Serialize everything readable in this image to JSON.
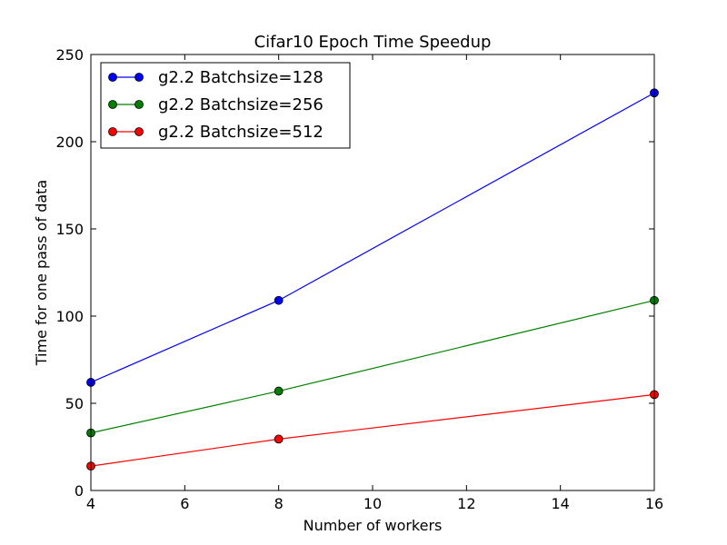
{
  "chart_data": {
    "type": "line",
    "title": "Cifar10 Epoch Time Speedup",
    "xlabel": "Number of workers",
    "ylabel": "Time for one pass of data",
    "xlim": [
      4,
      16
    ],
    "ylim": [
      0,
      250
    ],
    "xticks": [
      "4",
      "6",
      "8",
      "10",
      "12",
      "14",
      "16"
    ],
    "yticks": [
      "0",
      "50",
      "100",
      "150",
      "200",
      "250"
    ],
    "grid": false,
    "legend_position": "top-left",
    "x": [
      4,
      8,
      16
    ],
    "series": [
      {
        "name": "g2.2 Batchsize=128",
        "color": "#0000ff",
        "values": [
          62,
          109,
          228
        ]
      },
      {
        "name": "g2.2 Batchsize=256",
        "color": "#008000",
        "values": [
          33,
          57,
          109
        ]
      },
      {
        "name": "g2.2 Batchsize=512",
        "color": "#ff0000",
        "values": [
          14,
          29.5,
          55
        ]
      }
    ]
  }
}
